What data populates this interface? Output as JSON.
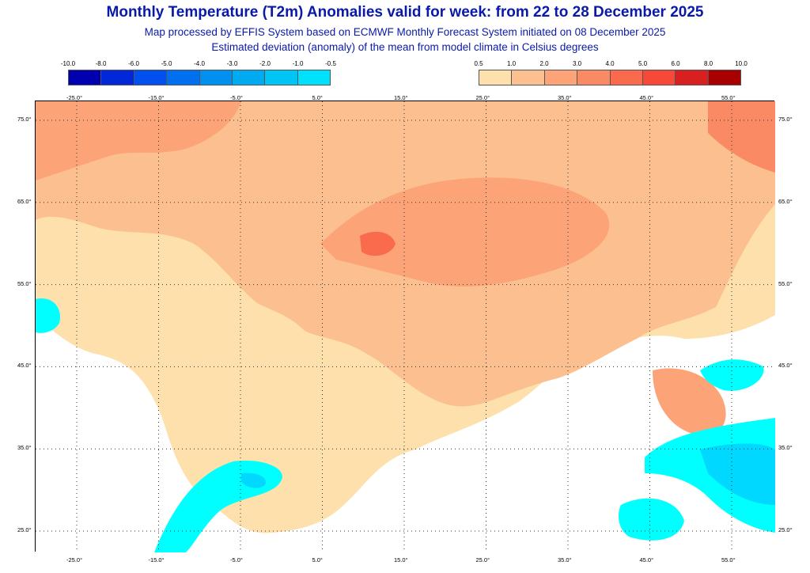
{
  "header": {
    "title": "Monthly Temperature (T2m) Anomalies valid for week: from 22 to 28 December 2025",
    "subtitle1": "Map processed by EFFIS System based on ECMWF Monthly Forecast System initiated on 08 December 2025",
    "subtitle2": "Estimated deviation (anomaly) of the mean from model climate in Celsius degrees"
  },
  "legend_cold": {
    "ticks": [
      "-10.0",
      "-8.0",
      "-6.0",
      "-5.0",
      "-4.0",
      "-3.0",
      "-2.0",
      "-1.0",
      "-0.5"
    ],
    "colors": [
      "#0000b0",
      "#0028d8",
      "#0050f0",
      "#0070f0",
      "#0090f0",
      "#00aaf0",
      "#00c4f4",
      "#00e0ff"
    ]
  },
  "legend_warm": {
    "ticks": [
      "0.5",
      "1.0",
      "2.0",
      "3.0",
      "4.0",
      "5.0",
      "6.0",
      "8.0",
      "10.0"
    ],
    "colors": [
      "#fde0ac",
      "#fcc090",
      "#fca478",
      "#fa8a64",
      "#fa6a4c",
      "#f84838",
      "#d82020",
      "#a80000"
    ]
  },
  "axes": {
    "longitudes": [
      "-25.0°",
      "-15.0°",
      "-5.0°",
      "5.0°",
      "15.0°",
      "25.0°",
      "35.0°",
      "45.0°",
      "55.0°"
    ],
    "latitudes": [
      "75.0°",
      "65.0°",
      "55.0°",
      "45.0°",
      "35.0°",
      "25.0°"
    ]
  },
  "colors": {
    "title": "#0a1aa8",
    "anom_0_5_1": "#fde0ac",
    "anom_1_2": "#fcc090",
    "anom_2_3": "#fca478",
    "anom_3_4": "#fa8a64",
    "cold_light": "#00ffff",
    "cold_mid": "#00d8ff"
  }
}
